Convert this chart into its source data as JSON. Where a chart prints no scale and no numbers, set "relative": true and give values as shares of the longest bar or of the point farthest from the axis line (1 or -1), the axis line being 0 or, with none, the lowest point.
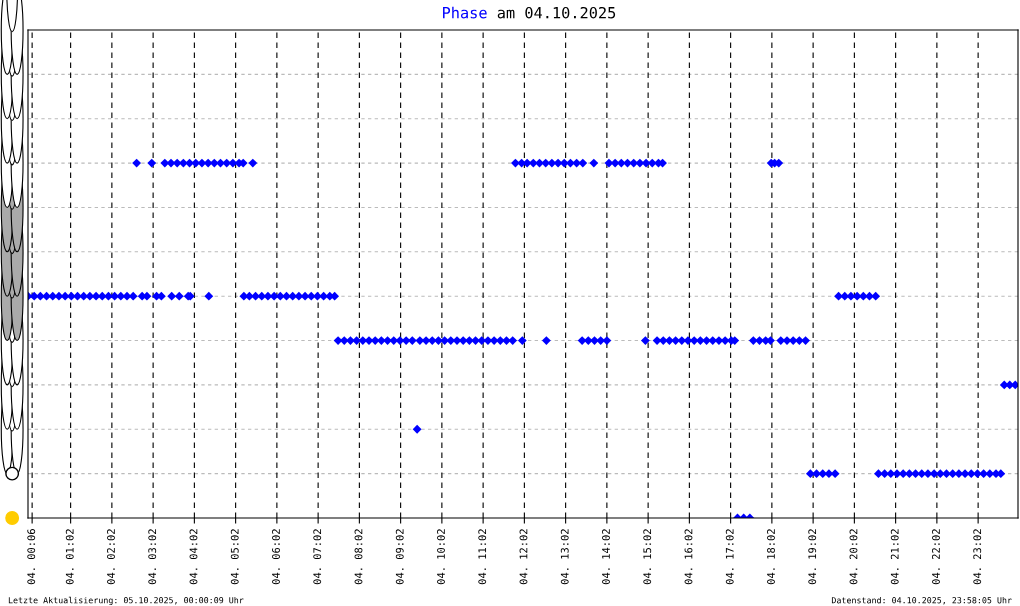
{
  "chart_data": {
    "type": "scatter",
    "title": "am 04.10.2025",
    "annotations": [
      "Letzte Aktualisierung: 05.10.2025, 00:00:09 Uhr",
      "Datenstand: 04.10.2025, 23:58:05 Uhr"
    ],
    "xlim": [
      "2025-10-04T00:00",
      "2025-10-05T00:00"
    ],
    "relative": true,
    "xticks": [
      {
        "value": "2025-10-04T00:06",
        "label": "04. 00:06"
      },
      {
        "value": "2025-10-04T01:02",
        "label": "04. 01:02"
      },
      {
        "value": "2025-10-04T02:02",
        "label": "04. 02:02"
      },
      {
        "value": "2025-10-04T03:02",
        "label": "04. 03:02"
      },
      {
        "value": "2025-10-04T04:02",
        "label": "04. 04:02"
      },
      {
        "value": "2025-10-04T05:02",
        "label": "04. 05:02"
      },
      {
        "value": "2025-10-04T06:02",
        "label": "04. 06:02"
      },
      {
        "value": "2025-10-04T07:02",
        "label": "04. 07:02"
      },
      {
        "value": "2025-10-04T08:02",
        "label": "04. 08:02"
      },
      {
        "value": "2025-10-04T09:02",
        "label": "04. 09:02"
      },
      {
        "value": "2025-10-04T10:02",
        "label": "04. 10:02"
      },
      {
        "value": "2025-10-04T11:02",
        "label": "04. 11:02"
      },
      {
        "value": "2025-10-04T12:02",
        "label": "04. 12:02"
      },
      {
        "value": "2025-10-04T13:02",
        "label": "04. 13:02"
      },
      {
        "value": "2025-10-04T14:02",
        "label": "04. 14:02"
      },
      {
        "value": "2025-10-04T15:02",
        "label": "04. 15:02"
      },
      {
        "value": "2025-10-04T16:02",
        "label": "04. 16:02"
      },
      {
        "value": "2025-10-04T17:02",
        "label": "04. 17:02"
      },
      {
        "value": "2025-10-04T18:02",
        "label": "04. 18:02"
      },
      {
        "value": "2025-10-04T19:02",
        "label": "04. 19:02"
      },
      {
        "value": "2025-10-04T20:02",
        "label": "04. 20:02"
      },
      {
        "value": "2025-10-04T21:02",
        "label": "04. 21:02"
      },
      {
        "value": "2025-10-04T22:02",
        "label": "04. 22:02"
      },
      {
        "value": "2025-10-04T23:02",
        "label": "04. 23:02"
      }
    ],
    "tick_labels": "x",
    "grid": true,
    "marker": "diamond",
    "series": [
      {
        "name": "Phase",
        "color": "#0000ff",
        "x": [
          "2025-10-04T00:00",
          "2025-10-04T00:09",
          "2025-10-04T00:18",
          "2025-10-04T00:27",
          "2025-10-04T00:36",
          "2025-10-04T00:45",
          "2025-10-04T00:54",
          "2025-10-04T01:03",
          "2025-10-04T01:12",
          "2025-10-04T01:21",
          "2025-10-04T01:30",
          "2025-10-04T01:39",
          "2025-10-04T01:48",
          "2025-10-04T01:57",
          "2025-10-04T02:06",
          "2025-10-04T02:15",
          "2025-10-04T02:24",
          "2025-10-04T02:33",
          "2025-10-04T02:38",
          "2025-10-04T02:46",
          "2025-10-04T02:53",
          "2025-10-04T03:00",
          "2025-10-04T03:07",
          "2025-10-04T03:14",
          "2025-10-04T03:19",
          "2025-10-04T03:28",
          "2025-10-04T03:29",
          "2025-10-04T03:37",
          "2025-10-04T03:40",
          "2025-10-04T03:46",
          "2025-10-04T03:53",
          "2025-10-04T03:55",
          "2025-10-04T03:56",
          "2025-10-04T04:04",
          "2025-10-04T04:13",
          "2025-10-04T04:22",
          "2025-10-04T04:23",
          "2025-10-04T04:31",
          "2025-10-04T04:40",
          "2025-10-04T04:49",
          "2025-10-04T04:58",
          "2025-10-04T05:07",
          "2025-10-04T05:13",
          "2025-10-04T05:14",
          "2025-10-04T05:22",
          "2025-10-04T05:27",
          "2025-10-04T05:31",
          "2025-10-04T05:40",
          "2025-10-04T05:49",
          "2025-10-04T05:58",
          "2025-10-04T06:07",
          "2025-10-04T06:16",
          "2025-10-04T06:25",
          "2025-10-04T06:34",
          "2025-10-04T06:43",
          "2025-10-04T06:52",
          "2025-10-04T07:01",
          "2025-10-04T07:10",
          "2025-10-04T07:19",
          "2025-10-04T07:26",
          "2025-10-04T07:31",
          "2025-10-04T07:40",
          "2025-10-04T07:49",
          "2025-10-04T07:58",
          "2025-10-04T08:07",
          "2025-10-04T08:16",
          "2025-10-04T08:25",
          "2025-10-04T08:34",
          "2025-10-04T08:43",
          "2025-10-04T08:52",
          "2025-10-04T09:01",
          "2025-10-04T09:10",
          "2025-10-04T09:19",
          "2025-10-04T09:26",
          "2025-10-04T09:30",
          "2025-10-04T09:39",
          "2025-10-04T09:48",
          "2025-10-04T09:57",
          "2025-10-04T10:06",
          "2025-10-04T10:15",
          "2025-10-04T10:24",
          "2025-10-04T10:33",
          "2025-10-04T10:42",
          "2025-10-04T10:51",
          "2025-10-04T11:00",
          "2025-10-04T11:09",
          "2025-10-04T11:18",
          "2025-10-04T11:27",
          "2025-10-04T11:36",
          "2025-10-04T11:45",
          "2025-10-04T11:49",
          "2025-10-04T11:58",
          "2025-10-04T11:59",
          "2025-10-04T12:06",
          "2025-10-04T12:15",
          "2025-10-04T12:24",
          "2025-10-04T12:33",
          "2025-10-04T12:34",
          "2025-10-04T12:42",
          "2025-10-04T12:51",
          "2025-10-04T13:00",
          "2025-10-04T13:09",
          "2025-10-04T13:18",
          "2025-10-04T13:26",
          "2025-10-04T13:27",
          "2025-10-04T13:35",
          "2025-10-04T13:43",
          "2025-10-04T13:44",
          "2025-10-04T13:53",
          "2025-10-04T14:02",
          "2025-10-04T14:05",
          "2025-10-04T14:14",
          "2025-10-04T14:23",
          "2025-10-04T14:32",
          "2025-10-04T14:41",
          "2025-10-04T14:50",
          "2025-10-04T14:58",
          "2025-10-04T14:59",
          "2025-10-04T15:08",
          "2025-10-04T15:15",
          "2025-10-04T15:17",
          "2025-10-04T15:23",
          "2025-10-04T15:24",
          "2025-10-04T15:33",
          "2025-10-04T15:42",
          "2025-10-04T15:51",
          "2025-10-04T16:00",
          "2025-10-04T16:09",
          "2025-10-04T16:18",
          "2025-10-04T16:27",
          "2025-10-04T16:36",
          "2025-10-04T16:45",
          "2025-10-04T16:54",
          "2025-10-04T17:03",
          "2025-10-04T17:08",
          "2025-10-04T17:12",
          "2025-10-04T17:21",
          "2025-10-04T17:30",
          "2025-10-04T17:35",
          "2025-10-04T17:44",
          "2025-10-04T17:53",
          "2025-10-04T18:00",
          "2025-10-04T18:01",
          "2025-10-04T18:06",
          "2025-10-04T18:12",
          "2025-10-04T18:15",
          "2025-10-04T18:24",
          "2025-10-04T18:33",
          "2025-10-04T18:42",
          "2025-10-04T18:51",
          "2025-10-04T18:58",
          "2025-10-04T19:07",
          "2025-10-04T19:16",
          "2025-10-04T19:25",
          "2025-10-04T19:34",
          "2025-10-04T19:39",
          "2025-10-04T19:48",
          "2025-10-04T19:57",
          "2025-10-04T20:06",
          "2025-10-04T20:15",
          "2025-10-04T20:24",
          "2025-10-04T20:33",
          "2025-10-04T20:37",
          "2025-10-04T20:46",
          "2025-10-04T20:55",
          "2025-10-04T21:04",
          "2025-10-04T21:13",
          "2025-10-04T21:22",
          "2025-10-04T21:31",
          "2025-10-04T21:40",
          "2025-10-04T21:49",
          "2025-10-04T21:58",
          "2025-10-04T22:07",
          "2025-10-04T22:16",
          "2025-10-04T22:25",
          "2025-10-04T22:34",
          "2025-10-04T22:43",
          "2025-10-04T22:52",
          "2025-10-04T23:01",
          "2025-10-04T23:10",
          "2025-10-04T23:19",
          "2025-10-04T23:28",
          "2025-10-04T23:35",
          "2025-10-04T23:40",
          "2025-10-04T23:48",
          "2025-10-04T23:56"
        ],
        "values": [
          0.625,
          0.625,
          0.625,
          0.625,
          0.625,
          0.625,
          0.625,
          0.625,
          0.625,
          0.625,
          0.625,
          0.625,
          0.625,
          0.625,
          0.625,
          0.625,
          0.625,
          0.625,
          1,
          0.625,
          0.625,
          1,
          0.625,
          0.625,
          1,
          1,
          0.625,
          1,
          0.625,
          1,
          0.625,
          1,
          0.625,
          1,
          1,
          1,
          0.625,
          1,
          1,
          1,
          1,
          1,
          1,
          0.625,
          0.625,
          1,
          0.625,
          0.625,
          0.625,
          0.625,
          0.625,
          0.625,
          0.625,
          0.625,
          0.625,
          0.625,
          0.625,
          0.625,
          0.625,
          0.625,
          0.5,
          0.5,
          0.5,
          0.5,
          0.5,
          0.5,
          0.5,
          0.5,
          0.5,
          0.5,
          0.5,
          0.5,
          0.5,
          0.25,
          0.5,
          0.5,
          0.5,
          0.5,
          0.5,
          0.5,
          0.5,
          0.5,
          0.5,
          0.5,
          0.5,
          0.5,
          0.5,
          0.5,
          0.5,
          0.5,
          1,
          1,
          0.5,
          1,
          1,
          1,
          1,
          0.5,
          1,
          1,
          1,
          1,
          1,
          0.5,
          1,
          0.5,
          1,
          0.5,
          0.5,
          0.5,
          1,
          1,
          1,
          1,
          1,
          1,
          0.5,
          1,
          1,
          0.5,
          1,
          1,
          0.5,
          0.5,
          0.5,
          0.5,
          0.5,
          0.5,
          0.5,
          0.5,
          0.5,
          0.5,
          0.5,
          0.5,
          0.5,
          0,
          0,
          0,
          0.5,
          0.5,
          0.5,
          0.5,
          1,
          1,
          1,
          0.5,
          0.5,
          0.5,
          0.5,
          0.5,
          0.125,
          0.125,
          0.125,
          0.125,
          0.125,
          0.625,
          0.625,
          0.625,
          0.625,
          0.625,
          0.625,
          0.625,
          0.125,
          0.125,
          0.125,
          0.125,
          0.125,
          0.125,
          0.125,
          0.125,
          0.125,
          0.125,
          0.125,
          0.125,
          0.125,
          0.125,
          0.125,
          0.125,
          0.125,
          0.125,
          0.125,
          0.125,
          0.125,
          0.375,
          0.375,
          0.375
        ]
      }
    ]
  }
}
